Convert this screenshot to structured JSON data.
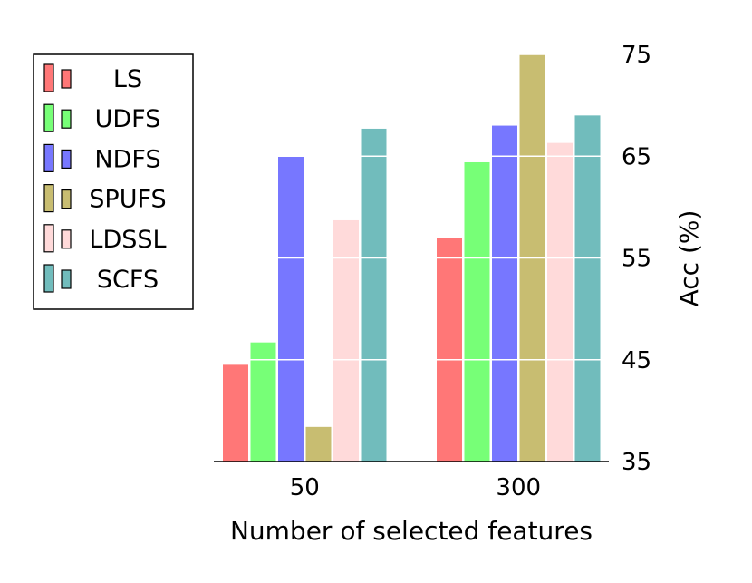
{
  "chart_data": {
    "type": "bar",
    "categories": [
      "50",
      "300"
    ],
    "series": [
      {
        "name": "LS",
        "color": "#ff7777",
        "values": [
          44.5,
          57.0
        ]
      },
      {
        "name": "UDFS",
        "color": "#77ff77",
        "values": [
          46.7,
          64.4
        ]
      },
      {
        "name": "NDFS",
        "color": "#7777ff",
        "values": [
          65.0,
          68.0
        ]
      },
      {
        "name": "SPUFS",
        "color": "#c8bd71",
        "values": [
          38.4,
          75.0
        ]
      },
      {
        "name": "LDSSL",
        "color": "#ffdada",
        "values": [
          58.7,
          66.3
        ]
      },
      {
        "name": "SCFS",
        "color": "#71bcbc",
        "values": [
          67.7,
          69.0
        ]
      }
    ],
    "xlabel": "Number of selected features",
    "ylabel": "Acc (%)",
    "ylim": [
      35,
      75
    ],
    "yticks": [
      35,
      45,
      55,
      65,
      75
    ],
    "gridlines": "horizontal white",
    "legend_position": "left",
    "y_axis_position": "right"
  }
}
